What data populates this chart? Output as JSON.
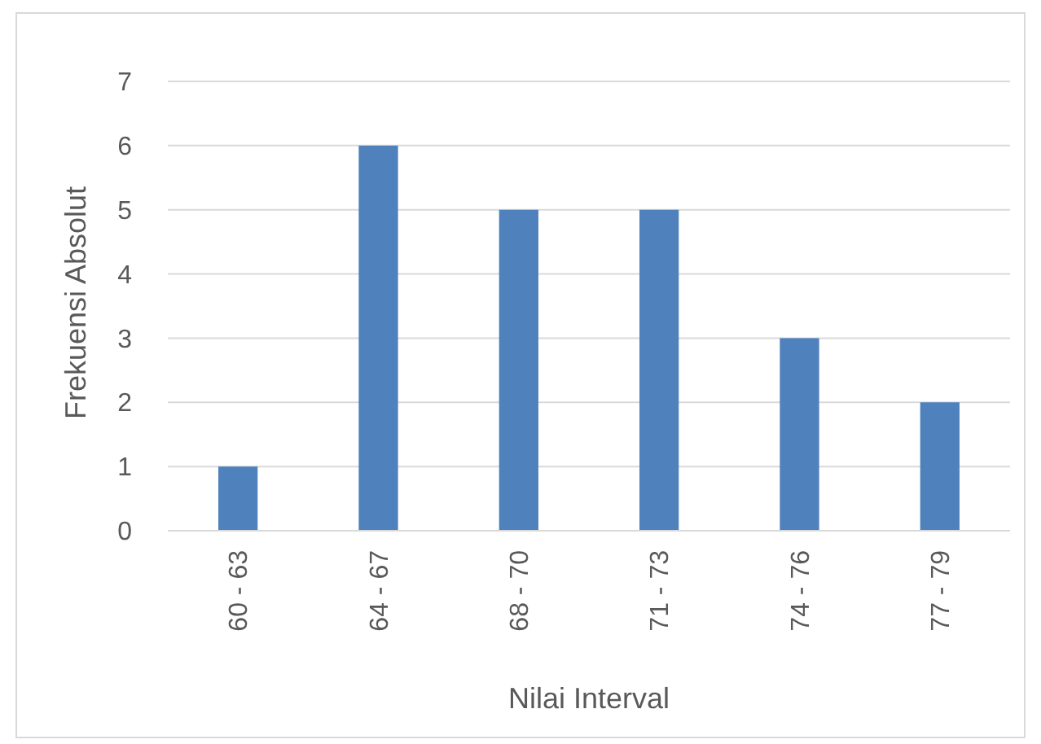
{
  "chart_data": {
    "type": "bar",
    "xlabel": "Nilai Interval",
    "ylabel": "Frekuensi Absolut",
    "categories": [
      "60 - 63",
      "64 - 67",
      "68 - 70",
      "71 - 73",
      "74 - 76",
      "77 - 79"
    ],
    "values": [
      1,
      6,
      5,
      5,
      3,
      2
    ],
    "color": "#4f81bd",
    "ylim": [
      0,
      7
    ],
    "yticks": [
      0,
      1,
      2,
      3,
      4,
      5,
      6,
      7
    ],
    "grid": "y"
  }
}
